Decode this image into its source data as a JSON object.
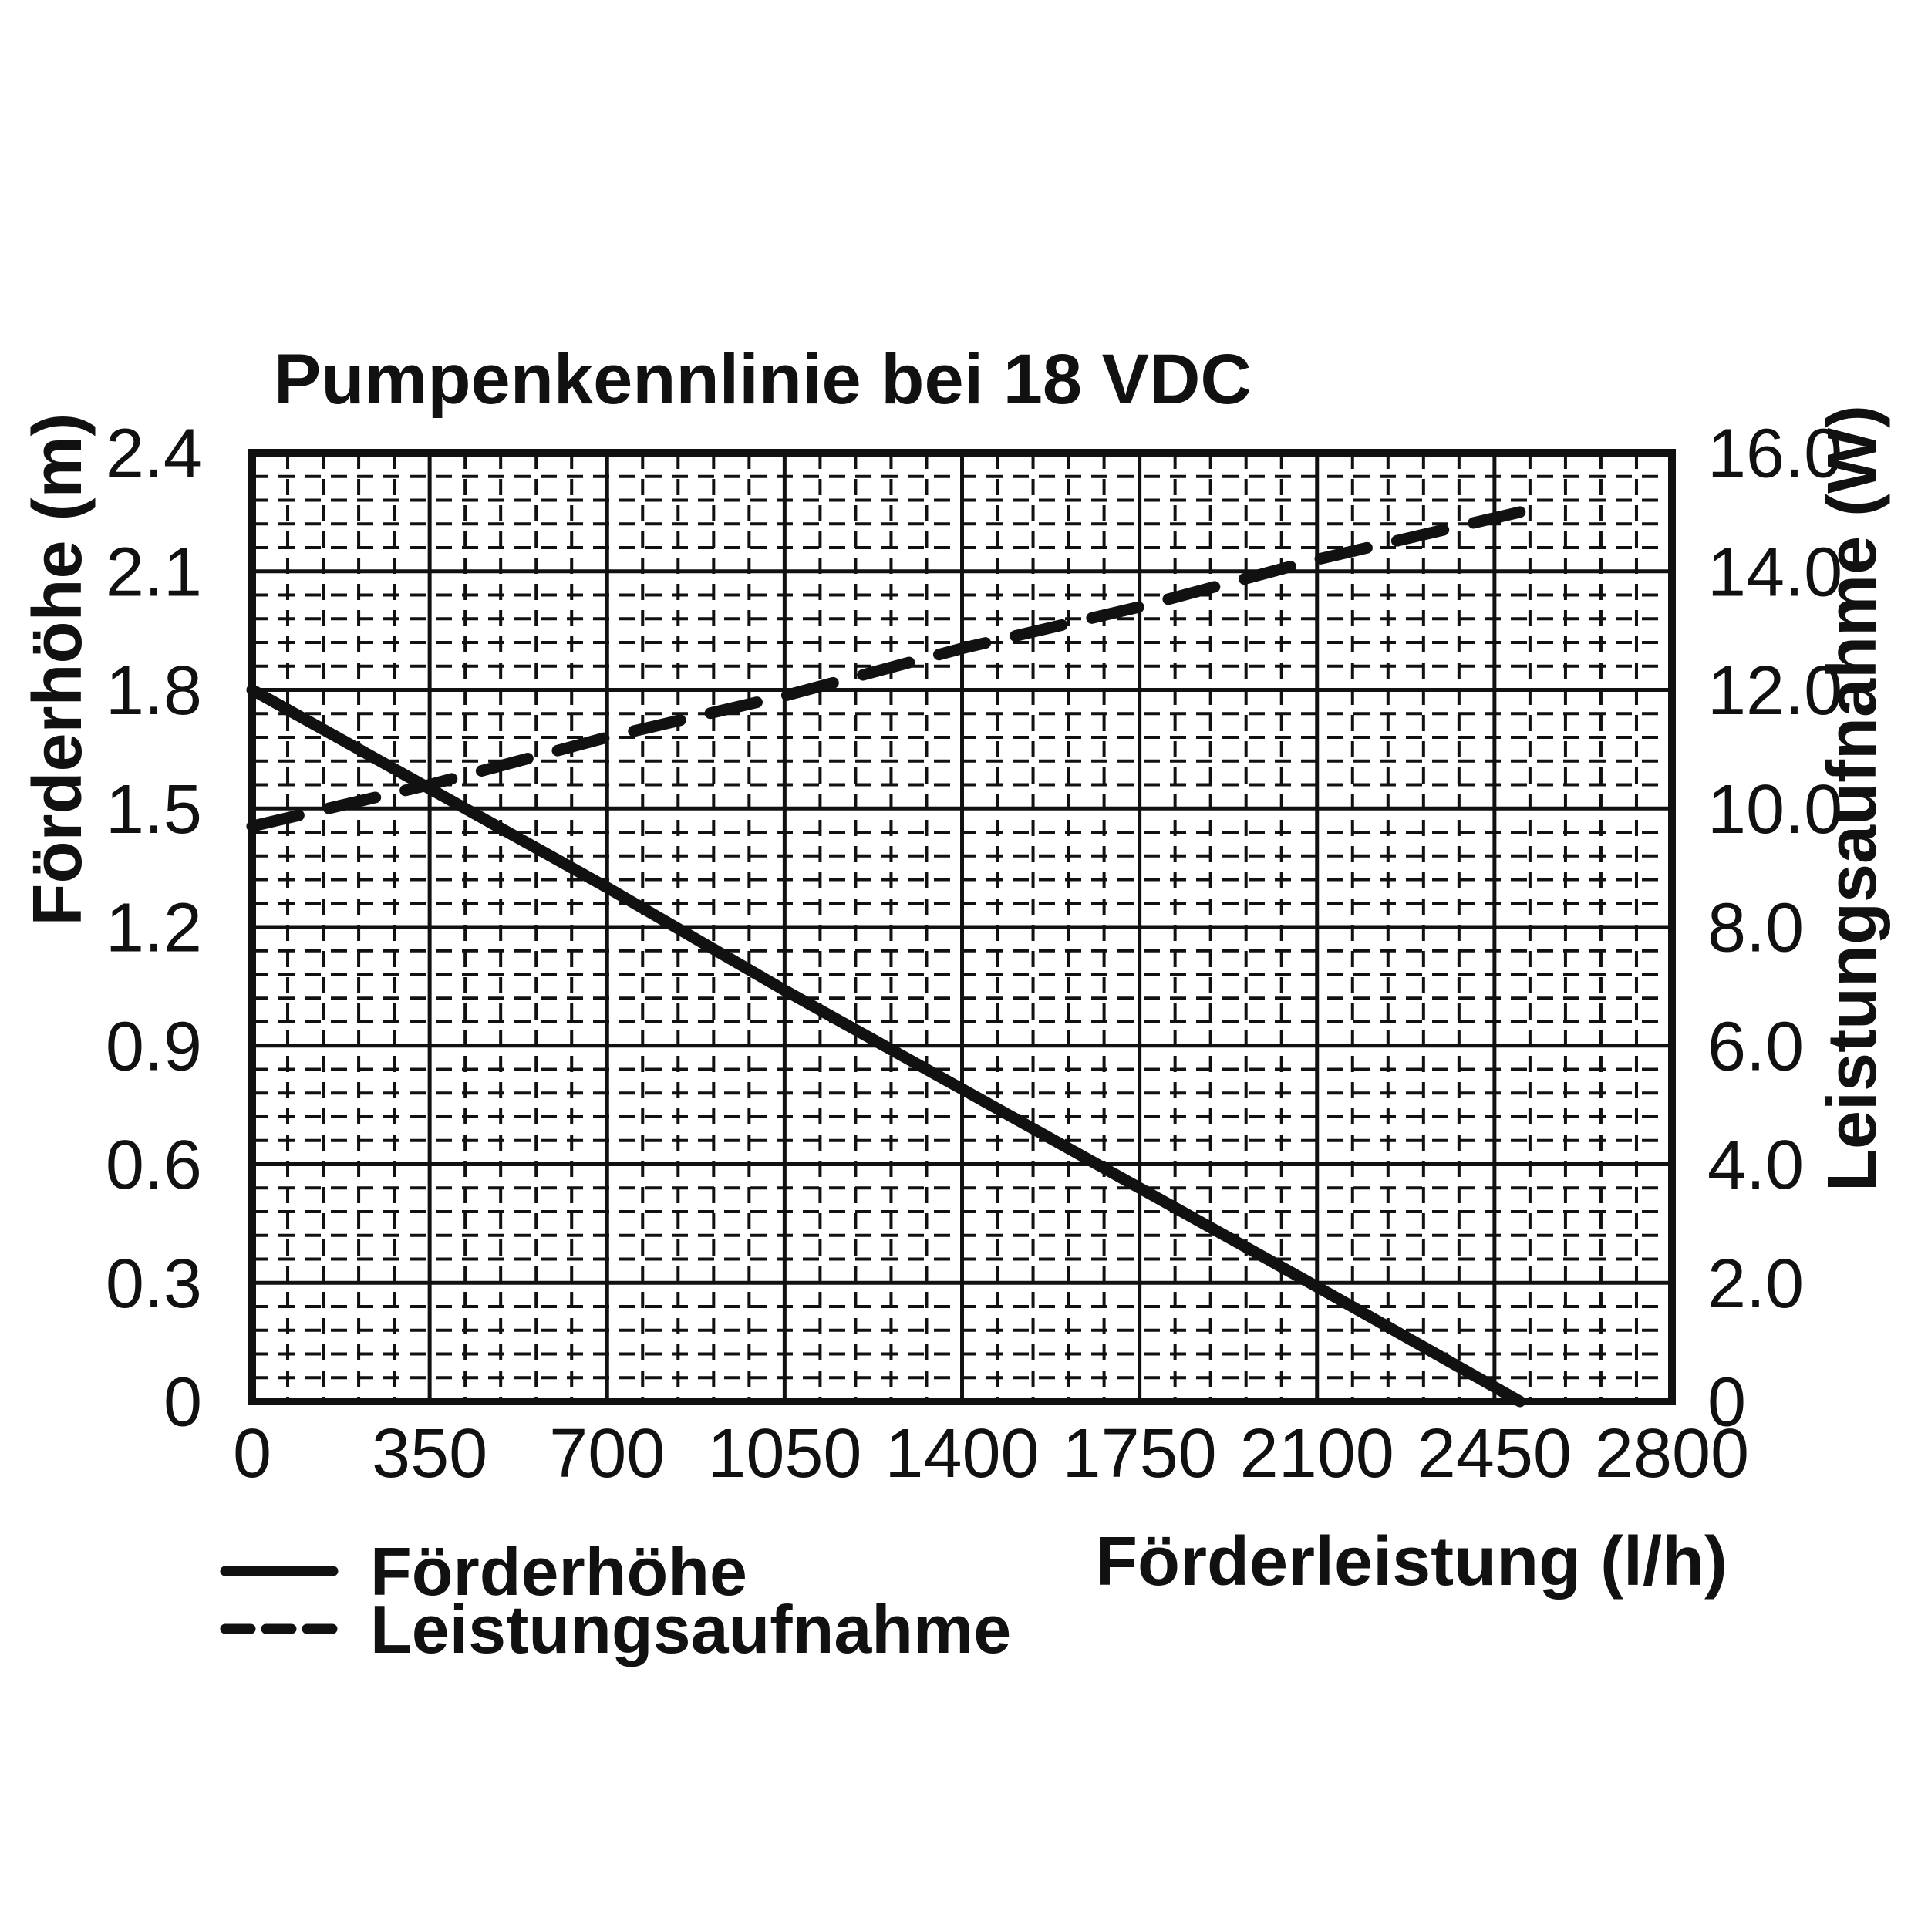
{
  "title": "Pumpenkennlinie bei 18 VDC",
  "axes": {
    "x": {
      "label": "Förderleistung (l/h)",
      "min": 0,
      "max": 2800,
      "major_step": 350,
      "minor_step": 70,
      "ticks": [
        "0",
        "350",
        "700",
        "1050",
        "1400",
        "1750",
        "2100",
        "2450",
        "2800"
      ]
    },
    "y_left": {
      "label": "Förderhöhe (m)",
      "min": 0,
      "max": 2.4,
      "major_step": 0.3,
      "minor_step": 0.06,
      "ticks": [
        "2.4",
        "2.1",
        "1.8",
        "1.5",
        "1.2",
        "0.9",
        "0.6",
        "0.3",
        "0"
      ]
    },
    "y_right": {
      "label": "Leistungsaufnahme (W)",
      "min": 0,
      "max": 16,
      "major_step": 2,
      "minor_step": 0.4,
      "ticks": [
        "16.0",
        "14.0",
        "12.0",
        "10.0",
        "8.0",
        "6.0",
        "4.0",
        "2.0",
        "0"
      ]
    }
  },
  "legend": [
    {
      "label": "Förderhöhe",
      "style": "solid"
    },
    {
      "label": "Leistungsaufnahme",
      "style": "dashed"
    }
  ],
  "colors": {
    "ink": "#111111",
    "background": "#ffffff"
  },
  "chart_data": {
    "type": "line",
    "title": "Pumpenkennlinie bei 18 VDC",
    "xlabel": "Förderleistung (l/h)",
    "ylabel_left": "Förderhöhe (m)",
    "ylabel_right": "Leistungsaufnahme (W)",
    "xlim": [
      0,
      2800
    ],
    "ylim_left": [
      0,
      2.4
    ],
    "ylim_right": [
      0,
      16
    ],
    "grid": "major-solid minor-dashed",
    "legend_position": "bottom-left",
    "series": [
      {
        "name": "Förderhöhe",
        "axis": "left",
        "line_style": "solid",
        "points": [
          [
            0,
            1.8
          ],
          [
            350,
            1.55
          ],
          [
            700,
            1.3
          ],
          [
            1050,
            1.04
          ],
          [
            1400,
            0.79
          ],
          [
            1750,
            0.54
          ],
          [
            2100,
            0.29
          ],
          [
            2500,
            0
          ]
        ]
      },
      {
        "name": "Leistungsaufnahme",
        "axis": "right",
        "line_style": "dashed",
        "points": [
          [
            0,
            9.7
          ],
          [
            350,
            10.4
          ],
          [
            700,
            11.2
          ],
          [
            1050,
            11.9
          ],
          [
            1400,
            12.7
          ],
          [
            1750,
            13.4
          ],
          [
            2100,
            14.2
          ],
          [
            2500,
            15.0
          ]
        ]
      }
    ]
  }
}
